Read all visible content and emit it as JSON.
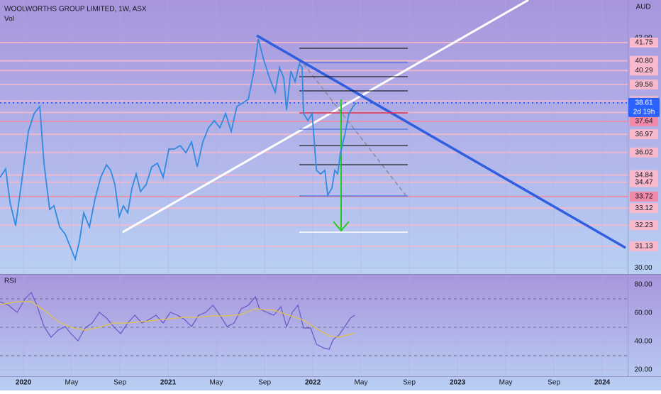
{
  "chart_data": [
    {
      "type": "line",
      "title": "WOOLWORTHS GROUP LIMITED, 1W, ASX",
      "subtitle": "Vol",
      "y_unit": "AUD",
      "xlim": [
        2019.838,
        2024.176
      ],
      "ylim": [
        29.72,
        43.97
      ],
      "yticks": [
        {
          "value": 30,
          "label": "30.00"
        },
        {
          "value": 42,
          "label": "42.00"
        }
      ],
      "series": [
        {
          "color": "#2f8ae0",
          "x": [
            2019.838,
            2019.877,
            2019.907,
            2019.946,
            2019.985,
            2020.034,
            2020.074,
            2020.113,
            2020.142,
            2020.181,
            2020.211,
            2020.25,
            2020.289,
            2020.328,
            2020.358,
            2020.387,
            2020.417,
            2020.456,
            2020.495,
            2020.534,
            2020.574,
            2020.603,
            2020.632,
            2020.662,
            2020.691,
            2020.721,
            2020.75,
            2020.779,
            2020.809,
            2020.848,
            2020.887,
            2020.926,
            2020.966,
            2021.005,
            2021.044,
            2021.083,
            2021.123,
            2021.162,
            2021.201,
            2021.24,
            2021.279,
            2021.319,
            2021.358,
            2021.397,
            2021.436,
            2021.475,
            2021.515,
            2021.554,
            2021.593,
            2021.623,
            2021.662,
            2021.701,
            2021.74,
            2021.77,
            2021.799,
            2021.819,
            2021.848,
            2021.877,
            2021.907,
            2021.926,
            2021.936,
            2021.966,
            2021.995,
            2022.025,
            2022.054,
            2022.083,
            2022.103,
            2022.132,
            2022.152,
            2022.172,
            2022.191,
            2022.221,
            2022.25,
            2022.279,
            2022.299
          ],
          "values": [
            34.72,
            35.16,
            33.42,
            32.2,
            34.35,
            37.12,
            38.05,
            38.42,
            35.46,
            33.05,
            33.24,
            32.13,
            31.76,
            31.02,
            30.46,
            31.39,
            32.87,
            32.13,
            33.61,
            34.72,
            35.38,
            35.09,
            34.35,
            32.68,
            33.24,
            32.87,
            34.16,
            34.9,
            33.98,
            34.35,
            35.27,
            35.46,
            34.72,
            36.2,
            36.2,
            36.38,
            36.01,
            36.57,
            35.27,
            36.57,
            37.31,
            37.68,
            37.31,
            38.05,
            37.12,
            38.42,
            38.6,
            38.79,
            40.27,
            41.94,
            40.82,
            39.9,
            39.16,
            40.45,
            39.9,
            38.23,
            40.27,
            39.71,
            40.64,
            40.45,
            38.05,
            37.68,
            38.05,
            35.09,
            34.9,
            35.09,
            33.79,
            34.16,
            35.09,
            34.9,
            36.01,
            36.94,
            38.05,
            38.42,
            38.6
          ]
        }
      ],
      "levels": [
        {
          "value": 41.75,
          "color": "#f7b9cb"
        },
        {
          "value": 40.8,
          "color": "#f7b9cb"
        },
        {
          "value": 40.29,
          "color": "#f7b9cb"
        },
        {
          "value": 39.56,
          "color": "#f7b9cb"
        },
        {
          "value": 38.7,
          "color": "#f7b9cb"
        },
        {
          "value": 38.11,
          "color": "#f7b9cb"
        },
        {
          "value": 37.64,
          "color": "#f08aa8"
        },
        {
          "value": 36.97,
          "color": "#f7b9cb"
        },
        {
          "value": 36.02,
          "color": "#f7b9cb"
        },
        {
          "value": 34.84,
          "color": "#f7b9cb"
        },
        {
          "value": 34.47,
          "color": "#f7b9cb"
        },
        {
          "value": 33.72,
          "color": "#f08aa8"
        },
        {
          "value": 33.12,
          "color": "#f7b9cb"
        },
        {
          "value": 32.23,
          "color": "#f7b9cb"
        },
        {
          "value": 31.13,
          "color": "#f7b9cb"
        }
      ],
      "last_price": 38.61,
      "countdown": "2d 19h",
      "last_price_color": "#2962ff"
    },
    {
      "type": "line",
      "title": "RSI",
      "xlim": [
        2019.838,
        2024.176
      ],
      "ylim": [
        15.5,
        86.5
      ],
      "yticks": [
        {
          "value": 20,
          "label": "20.00"
        },
        {
          "value": 40,
          "label": "40.00"
        },
        {
          "value": 60,
          "label": "60.00"
        },
        {
          "value": 80,
          "label": "80.00"
        }
      ],
      "bands": [
        30,
        50,
        70
      ],
      "xticks": [
        {
          "value": 2020,
          "label": "2020"
        },
        {
          "value": 2020.333,
          "label": "May"
        },
        {
          "value": 2020.667,
          "label": "Sep"
        },
        {
          "value": 2021,
          "label": "2021"
        },
        {
          "value": 2021.333,
          "label": "May"
        },
        {
          "value": 2021.667,
          "label": "Sep"
        },
        {
          "value": 2022,
          "label": "2022"
        },
        {
          "value": 2022.333,
          "label": "May"
        },
        {
          "value": 2022.667,
          "label": "Sep"
        },
        {
          "value": 2023,
          "label": "2023"
        },
        {
          "value": 2023.333,
          "label": "May"
        },
        {
          "value": 2023.667,
          "label": "Sep"
        },
        {
          "value": 2024,
          "label": "2024"
        }
      ],
      "series": [
        {
          "color": "#6a55c8",
          "x": [
            2019.838,
            2019.897,
            2019.956,
            2020.015,
            2020.054,
            2020.093,
            2020.142,
            2020.191,
            2020.24,
            2020.289,
            2020.328,
            2020.377,
            2020.426,
            2020.475,
            2020.525,
            2020.574,
            2020.623,
            2020.672,
            2020.721,
            2020.77,
            2020.819,
            2020.868,
            2020.917,
            2020.966,
            2021.015,
            2021.064,
            2021.113,
            2021.162,
            2021.211,
            2021.26,
            2021.309,
            2021.358,
            2021.407,
            2021.456,
            2021.505,
            2021.554,
            2021.603,
            2021.632,
            2021.681,
            2021.73,
            2021.779,
            2021.819,
            2021.858,
            2021.897,
            2021.936,
            2021.985,
            2022.025,
            2022.074,
            2022.113,
            2022.142,
            2022.181,
            2022.221,
            2022.26,
            2022.289
          ],
          "values": [
            68,
            65.5,
            60.5,
            70.5,
            74.5,
            65.5,
            50.5,
            43,
            48,
            50.5,
            45.5,
            40.5,
            49.5,
            53,
            60.5,
            56.5,
            50.5,
            45.5,
            53,
            58.5,
            53,
            55.5,
            58.5,
            53,
            60.5,
            58.5,
            55.5,
            50.5,
            58.5,
            60.5,
            65.5,
            58.5,
            50.5,
            53,
            63,
            65.5,
            71.5,
            63,
            60.5,
            58.5,
            64.5,
            50.5,
            60.5,
            65.5,
            49.5,
            49.5,
            38,
            35.5,
            34.5,
            41.5,
            44.5,
            50.5,
            56.5,
            58.5
          ]
        },
        {
          "color": "#e0c44a",
          "x": [
            2019.838,
            2019.956,
            2020.054,
            2020.142,
            2020.24,
            2020.328,
            2020.426,
            2020.525,
            2020.623,
            2020.721,
            2020.819,
            2020.917,
            2021.015,
            2021.113,
            2021.211,
            2021.309,
            2021.407,
            2021.505,
            2021.603,
            2021.73,
            2021.819,
            2021.936,
            2022.025,
            2022.113,
            2022.181,
            2022.26,
            2022.289
          ],
          "values": [
            66,
            68,
            68,
            62,
            54,
            50,
            48,
            50,
            53,
            53,
            54,
            55,
            56,
            57,
            57,
            58,
            58,
            59,
            63,
            62,
            59,
            55,
            49,
            44,
            43,
            45,
            46
          ]
        }
      ]
    }
  ]
}
